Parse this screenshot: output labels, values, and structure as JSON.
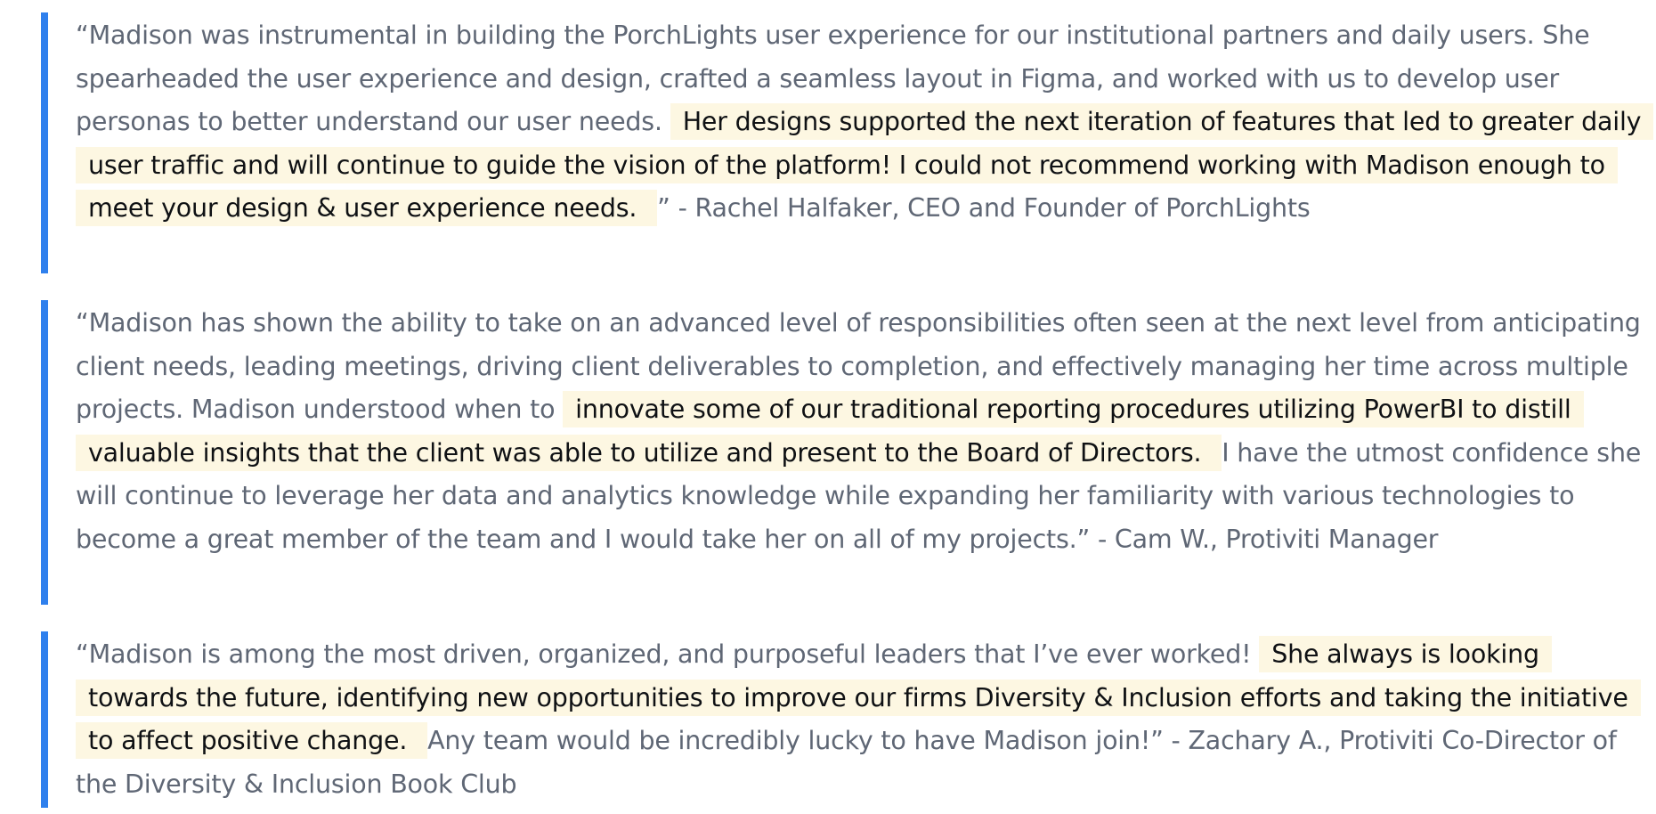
{
  "testimonials": [
    {
      "before": "“Madison was instrumental in building the PorchLights user experience for our institutional partners and daily users. She spearheaded the user experience and design, crafted a seamless layout in Figma, and worked with us to develop user personas to better understand our user needs. ",
      "highlight": "Her designs supported the next iteration of features that led to greater daily user traffic and will continue to guide the vision of the platform! I could not recommend working with Madison enough to meet your design & user experience needs. ",
      "after": " ” - Rachel Halfaker, CEO and Founder of PorchLights"
    },
    {
      "before": "“Madison has shown the ability to take on an advanced level of responsibilities often seen at the next level from anticipating client needs, leading meetings, driving client deliverables to completion, and effectively managing her time across multiple projects. Madison understood when to ",
      "highlight": "innovate some of our traditional reporting procedures utilizing PowerBI to distill valuable insights that the client was able to utilize and present to the Board of Directors. ",
      "after": " I have the utmost confidence she will continue to leverage her data and analytics knowledge while expanding her familiarity with various technologies to become a great member of the team and I would take her on all of my projects.” - Cam W., Protiviti Manager"
    },
    {
      "before": "“Madison is among the most driven, organized, and purposeful leaders that I’ve ever worked! ",
      "highlight": "She always is looking towards the future, identifying new opportunities to improve our firms Diversity & Inclusion efforts and taking the initiative to affect positive change. ",
      "after": " Any team would be incredibly lucky to have Madison join!” - Zachary A., Protiviti Co-Director of the Diversity & Inclusion Book Club"
    }
  ],
  "colors": {
    "accent_bar": "#2f80ed",
    "body_text": "#5f6775",
    "highlight_bg": "#fdf7e2",
    "highlight_text": "#0f1114"
  }
}
